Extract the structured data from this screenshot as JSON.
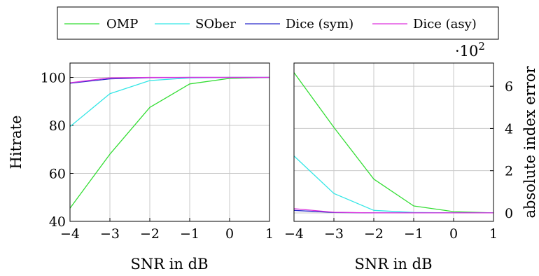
{
  "chart_data": [
    {
      "type": "line",
      "x": [
        -4,
        -3,
        -2,
        -1,
        0,
        1
      ],
      "xlabel": "SNR in dB",
      "ylabel": "Hitrate",
      "xlim": [
        -4,
        1
      ],
      "ylim": [
        40,
        106
      ],
      "xticks": [
        "−4",
        "−3",
        "−2",
        "−1",
        "0",
        "1"
      ],
      "yticks": [
        "40",
        "60",
        "80",
        "100"
      ],
      "ytick_values": [
        40,
        60,
        80,
        100
      ],
      "grid": true,
      "series": [
        {
          "name": "OMP",
          "color": "#33dd33",
          "values": [
            45.5,
            68.0,
            87.5,
            97.3,
            99.6,
            100.0
          ]
        },
        {
          "name": "SOber",
          "color": "#33e6e6",
          "values": [
            79.5,
            93.2,
            98.7,
            99.8,
            100.0,
            100.0
          ]
        },
        {
          "name": "Dice (sym)",
          "color": "#2a2acc",
          "values": [
            97.6,
            99.4,
            99.9,
            100.0,
            100.0,
            100.0
          ]
        },
        {
          "name": "Dice (asy)",
          "color": "#dd33dd",
          "values": [
            97.8,
            99.8,
            100.0,
            100.0,
            100.0,
            100.0
          ]
        }
      ]
    },
    {
      "type": "line",
      "x": [
        -4,
        -3,
        -2,
        -1,
        0,
        1
      ],
      "xlabel": "SNR in dB",
      "ylabel": "absolute index error",
      "scale_label": "·10",
      "scale_exp": "2",
      "xlim": [
        -4,
        1
      ],
      "ylim": [
        -0.4,
        7.1
      ],
      "xticks": [
        "−4",
        "−3",
        "−2",
        "−1",
        "0",
        "1"
      ],
      "yticks": [
        "0",
        "2",
        "4",
        "6"
      ],
      "ytick_values": [
        0,
        2,
        4,
        6
      ],
      "grid": true,
      "series": [
        {
          "name": "OMP",
          "color": "#33dd33",
          "values": [
            6.65,
            4.05,
            1.6,
            0.33,
            0.06,
            0.0
          ]
        },
        {
          "name": "SOber",
          "color": "#33e6e6",
          "values": [
            2.7,
            0.92,
            0.12,
            0.02,
            0.0,
            0.0
          ]
        },
        {
          "name": "Dice (sym)",
          "color": "#2a2acc",
          "values": [
            0.12,
            0.02,
            0.0,
            0.0,
            0.0,
            0.0
          ]
        },
        {
          "name": "Dice (asy)",
          "color": "#dd33dd",
          "values": [
            0.2,
            0.03,
            0.0,
            0.0,
            0.0,
            0.0
          ]
        }
      ]
    }
  ],
  "legend": {
    "entries": [
      {
        "label": "OMP",
        "color": "#33dd33"
      },
      {
        "label": "SOber",
        "color": "#33e6e6"
      },
      {
        "label": "Dice (sym)",
        "color": "#2a2acc"
      },
      {
        "label": "Dice (asy)",
        "color": "#dd33dd"
      }
    ]
  }
}
